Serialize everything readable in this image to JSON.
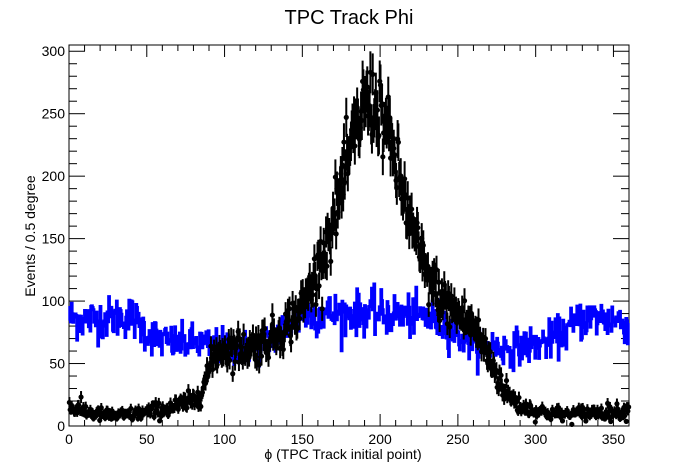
{
  "chart_data": {
    "type": "scatter",
    "title": "TPC Track Phi",
    "xlabel": "ϕ (TPC Track initial point)",
    "ylabel": "Events / 0.5 degree",
    "xlim": [
      0,
      360
    ],
    "ylim": [
      0,
      305
    ],
    "xticks": [
      "0",
      "50",
      "100",
      "150",
      "200",
      "250",
      "300",
      "350"
    ],
    "yticks": [
      "0",
      "50",
      "100",
      "150",
      "200",
      "250",
      "300"
    ],
    "bin_width": 0.5,
    "grid": false,
    "legend": "none",
    "series": [
      {
        "style": "histogram",
        "color": "#0000ff",
        "profile_x": [
          0,
          10,
          20,
          30,
          40,
          50,
          60,
          70,
          80,
          90,
          100,
          110,
          120,
          130,
          140,
          150,
          160,
          170,
          180,
          190,
          200,
          210,
          220,
          230,
          240,
          250,
          260,
          270,
          280,
          290,
          300,
          310,
          320,
          330,
          340,
          350,
          360
        ],
        "profile_y": [
          87,
          85,
          86,
          87,
          88,
          75,
          68,
          66,
          67,
          64,
          64,
          62,
          63,
          70,
          80,
          88,
          90,
          90,
          90,
          91,
          90,
          89,
          88,
          87,
          83,
          73,
          67,
          65,
          62,
          64,
          65,
          69,
          76,
          86,
          87,
          85,
          83
        ]
      },
      {
        "style": "points-with-errors",
        "color": "#000000",
        "profile_x": [
          0,
          10,
          20,
          30,
          40,
          50,
          60,
          70,
          80,
          85,
          90,
          95,
          100,
          110,
          120,
          130,
          140,
          150,
          160,
          170,
          180,
          190,
          200,
          210,
          220,
          230,
          240,
          250,
          260,
          270,
          280,
          290,
          300,
          310,
          320,
          330,
          340,
          350,
          360
        ],
        "profile_y": [
          15,
          12,
          9,
          8,
          9,
          11,
          13,
          16,
          20,
          28,
          45,
          60,
          62,
          62,
          64,
          70,
          80,
          95,
          125,
          165,
          215,
          260,
          255,
          210,
          160,
          120,
          100,
          90,
          80,
          55,
          28,
          16,
          12,
          10,
          9,
          10,
          11,
          11,
          12
        ]
      }
    ]
  }
}
